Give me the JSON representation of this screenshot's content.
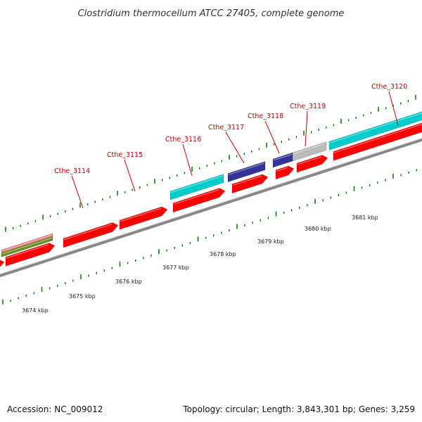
{
  "title": "Clostridium thermocellum ATCC 27405, complete genome",
  "footer": {
    "accession": "Accession: NC_009012",
    "summary": "Topology: circular; Length: 3,843,301 bp; Genes: 3,259"
  },
  "colors": {
    "cds": "#ff0000",
    "teal": "#00cccc",
    "navy": "#333399",
    "gray": "#bbbbbb",
    "pink": "#f08080",
    "olive": "#6b8e23",
    "tick": "#007700",
    "label": "#cc0000",
    "backbone": "#888888"
  },
  "gene_labels": [
    "Cthe_3114",
    "Cthe_3115",
    "Cthe_3116",
    "Cthe_3117",
    "Cthe_3118",
    "Cthe_3119",
    "Cthe_3120"
  ],
  "kbp_labels": [
    "3674 kbp",
    "3675 kbp",
    "3676 kbp",
    "3677 kbp",
    "3678 kbp",
    "3679 kbp",
    "3680 kbp",
    "3681 kbp"
  ]
}
